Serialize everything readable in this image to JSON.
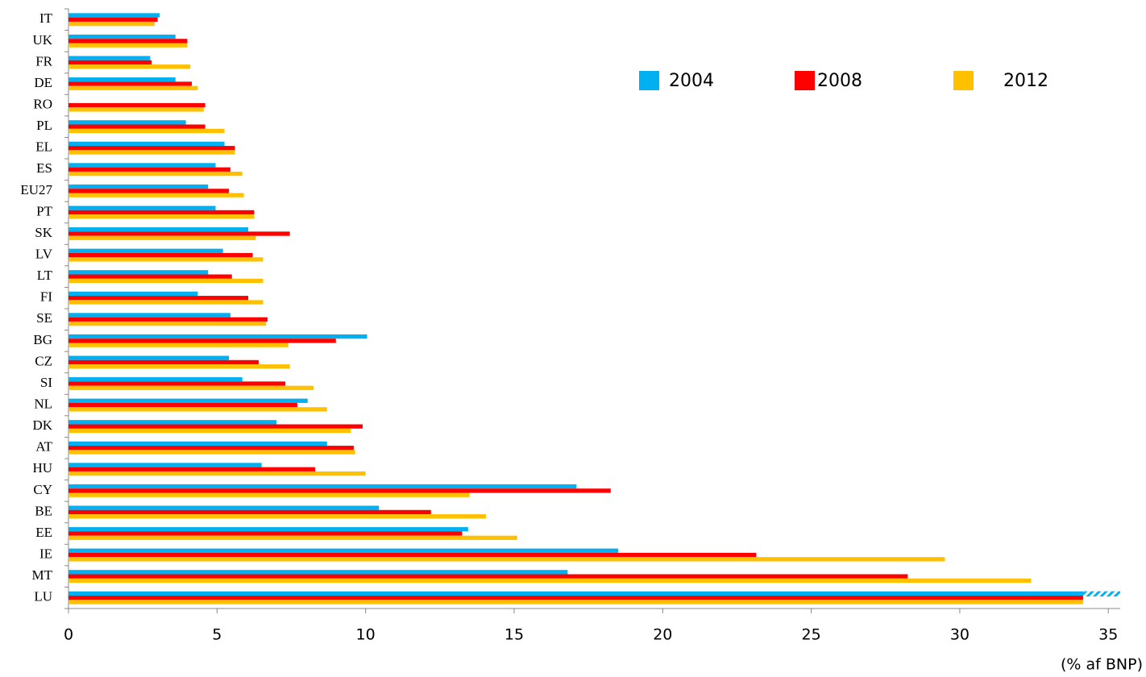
{
  "chart_data": {
    "type": "bar",
    "orientation": "horizontal",
    "x_label": "(% af BNP)",
    "categories": [
      "IT",
      "UK",
      "FR",
      "DE",
      "RO",
      "PL",
      "EL",
      "ES",
      "EU27",
      "PT",
      "SK",
      "LV",
      "LT",
      "FI",
      "SE",
      "BG",
      "CZ",
      "SI",
      "NL",
      "DK",
      "AT",
      "HU",
      "CY",
      "BE",
      "EE",
      "IE",
      "MT",
      "LU"
    ],
    "series": [
      {
        "name": "2004",
        "color": "#00b0f0",
        "values": [
          3.07,
          3.6,
          2.75,
          3.6,
          null,
          3.95,
          5.25,
          4.95,
          4.7,
          4.95,
          6.05,
          5.2,
          4.7,
          4.35,
          5.45,
          10.05,
          5.4,
          5.85,
          8.05,
          7.0,
          8.7,
          6.5,
          17.1,
          10.45,
          13.45,
          18.5,
          16.8,
          35.4
        ]
      },
      {
        "name": "2008",
        "color": "#ff0000",
        "values": [
          3.0,
          4.0,
          2.8,
          4.15,
          4.6,
          4.6,
          5.6,
          5.45,
          5.4,
          6.25,
          7.45,
          6.2,
          5.5,
          6.05,
          6.7,
          9.0,
          6.4,
          7.3,
          7.7,
          9.9,
          9.6,
          8.3,
          18.25,
          12.2,
          13.25,
          23.15,
          28.25,
          34.15
        ]
      },
      {
        "name": "2012",
        "color": "#ffc000",
        "values": [
          2.9,
          4.0,
          4.1,
          4.35,
          4.55,
          5.25,
          5.6,
          5.85,
          5.9,
          6.25,
          6.3,
          6.55,
          6.55,
          6.55,
          6.65,
          7.4,
          7.45,
          8.25,
          8.7,
          9.5,
          9.65,
          10.0,
          13.5,
          14.05,
          15.1,
          29.5,
          32.4,
          34.15
        ]
      }
    ],
    "xlim": [
      0,
      35.4
    ],
    "xticks": [
      0,
      5,
      10,
      15,
      20,
      25,
      30,
      35
    ]
  }
}
